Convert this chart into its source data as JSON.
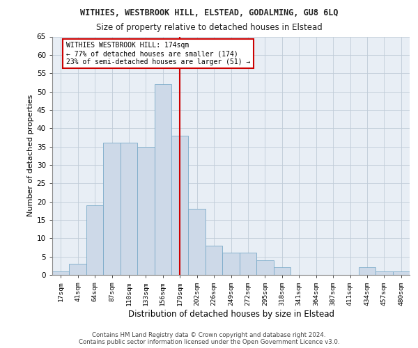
{
  "title": "WITHIES, WESTBROOK HILL, ELSTEAD, GODALMING, GU8 6LQ",
  "subtitle": "Size of property relative to detached houses in Elstead",
  "xlabel": "Distribution of detached houses by size in Elstead",
  "ylabel": "Number of detached properties",
  "bar_color": "#cdd9e8",
  "bar_edge_color": "#7aaac8",
  "grid_color": "#c0ccd8",
  "bg_color": "#e8eef5",
  "annotation_text_line1": "WITHIES WESTBROOK HILL: 174sqm",
  "annotation_text_line2": "← 77% of detached houses are smaller (174)",
  "annotation_text_line3": "23% of semi-detached houses are larger (51) →",
  "footer": "Contains HM Land Registry data © Crown copyright and database right 2024.\nContains public sector information licensed under the Open Government Licence v3.0.",
  "bin_labels": [
    "17sqm",
    "41sqm",
    "64sqm",
    "87sqm",
    "110sqm",
    "133sqm",
    "156sqm",
    "179sqm",
    "202sqm",
    "226sqm",
    "249sqm",
    "272sqm",
    "295sqm",
    "318sqm",
    "341sqm",
    "364sqm",
    "387sqm",
    "411sqm",
    "434sqm",
    "457sqm",
    "480sqm"
  ],
  "bar_heights": [
    1,
    3,
    19,
    36,
    36,
    35,
    52,
    38,
    18,
    8,
    6,
    6,
    4,
    2,
    0,
    0,
    0,
    0,
    2,
    1,
    1
  ],
  "ylim": [
    0,
    65
  ],
  "yticks": [
    0,
    5,
    10,
    15,
    20,
    25,
    30,
    35,
    40,
    45,
    50,
    55,
    60,
    65
  ],
  "red_line_index": 7
}
